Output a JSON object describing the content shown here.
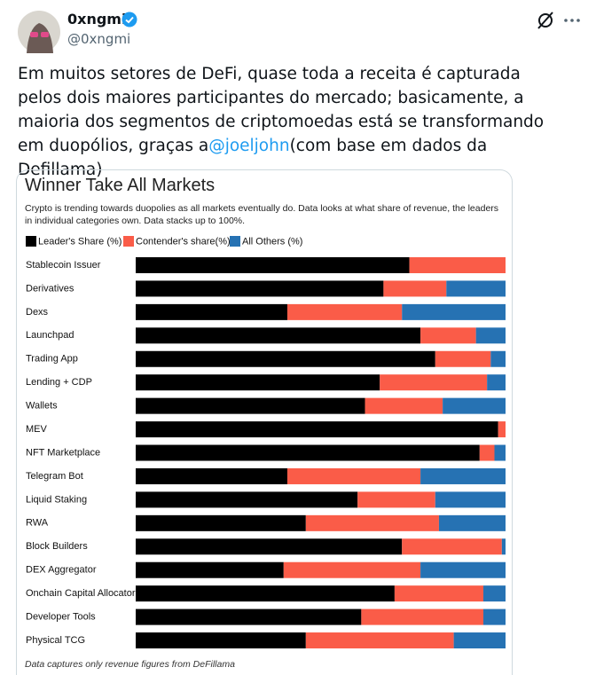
{
  "tweet": {
    "author_name": "0xngmi",
    "handle": "@0xngmi",
    "text_before": "Em muitos setores de DeFi, quase toda a receita é capturada pelos dois maiores participantes do mercado; basicamente, a maioria dos segmentos de criptomoedas está se transformando em duopólios, graças a",
    "link": "@joeljohn",
    "text_after": "(com base em dados da Defillama)"
  },
  "chart_data": {
    "type": "stacked-barh",
    "title": "Winner Take All Markets",
    "subtitle": "Crypto is trending towards duopolies as all markets eventually do. Data looks at what share of revenue, the leaders in individual categories own. Data stacks up to 100%.",
    "footnote": "Data captures only revenue figures from DeFillama",
    "xlim": [
      0,
      100
    ],
    "categories": [
      "Stablecoin Issuer",
      "Derivatives",
      "Dexs",
      "Launchpad",
      "Trading App",
      "Lending + CDP",
      "Wallets",
      "MEV",
      "NFT Marketplace",
      "Telegram Bot",
      "Liquid Staking",
      "RWA",
      "Block Builders",
      "DEX Aggregator",
      "Onchain Capital Allocator",
      "Developer Tools",
      "Physical TCG"
    ],
    "series": [
      {
        "name": "Leader's Share (%)",
        "color": "#000000",
        "values": [
          74,
          67,
          41,
          77,
          81,
          66,
          62,
          98,
          93,
          41,
          60,
          46,
          72,
          40,
          70,
          61,
          46
        ]
      },
      {
        "name": "Contender's share(%)",
        "color": "#fa5c48",
        "values": [
          26,
          17,
          31,
          15,
          15,
          29,
          21,
          2,
          4,
          36,
          21,
          36,
          27,
          37,
          24,
          33,
          40
        ]
      },
      {
        "name": "All Others (%)",
        "color": "#2672b3",
        "values": [
          0,
          16,
          28,
          8,
          4,
          5,
          17,
          0,
          3,
          23,
          19,
          18,
          1,
          23,
          6,
          6,
          14
        ]
      }
    ]
  }
}
